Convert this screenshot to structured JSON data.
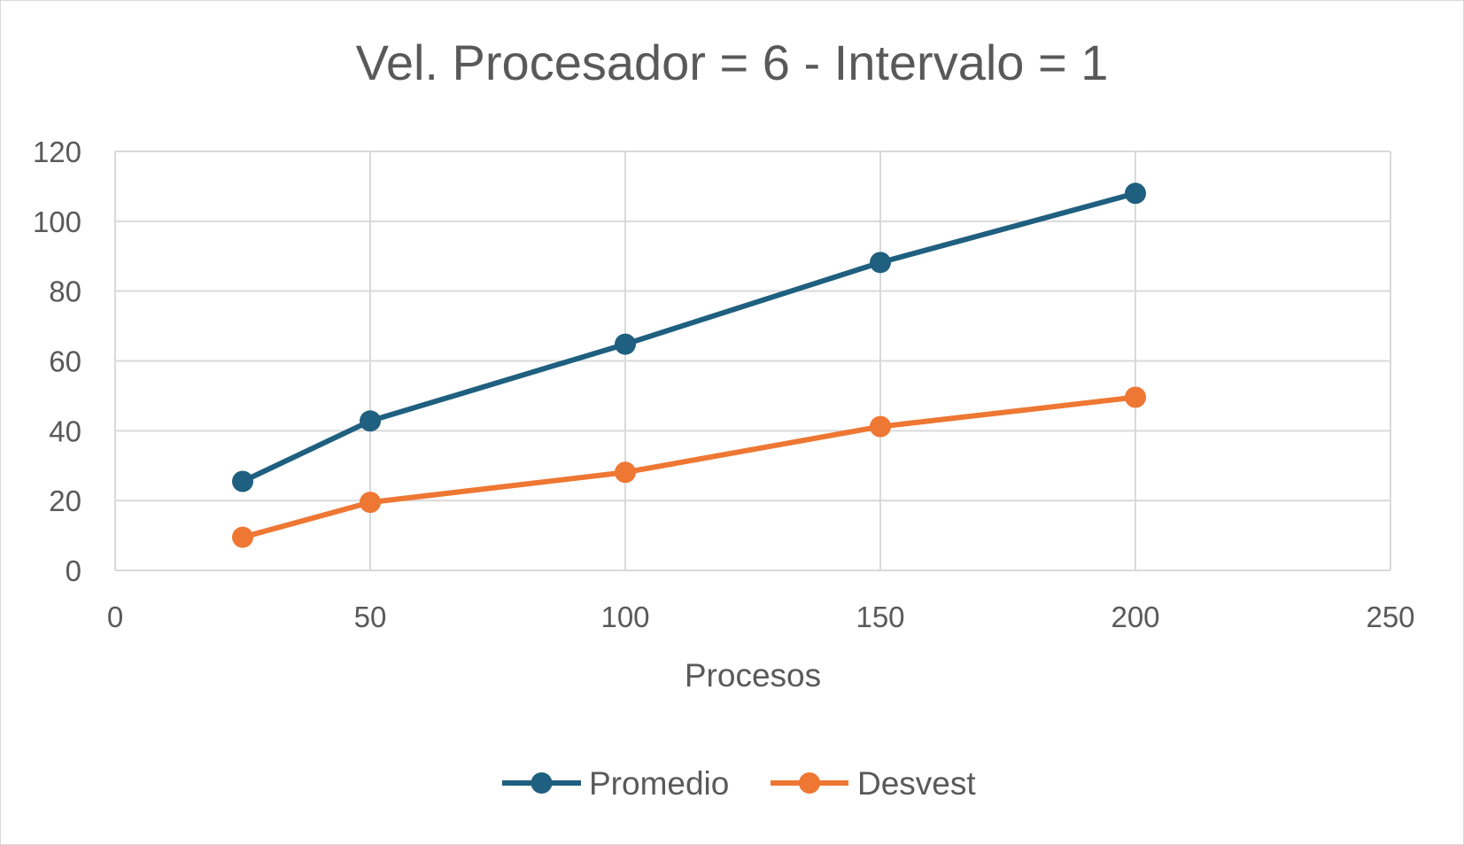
{
  "chart_data": {
    "type": "line",
    "title": "Vel. Procesador = 6 - Intervalo = 1",
    "xlabel": "Procesos",
    "ylabel": "",
    "xlim": [
      0,
      250
    ],
    "ylim": [
      0,
      120
    ],
    "x_ticks": [
      "0",
      "50",
      "100",
      "150",
      "200",
      "250"
    ],
    "y_ticks": [
      "0",
      "20",
      "40",
      "60",
      "80",
      "100",
      "120"
    ],
    "grid": true,
    "legend_position": "bottom",
    "series": [
      {
        "name": "Promedio",
        "color": "#1f5f7f",
        "x": [
          25,
          50,
          100,
          150,
          200
        ],
        "y": [
          25.5,
          42.8,
          64.8,
          88.2,
          108
        ]
      },
      {
        "name": "Desvest",
        "color": "#ee7733",
        "x": [
          25,
          50,
          100,
          150,
          200
        ],
        "y": [
          9.5,
          19.5,
          28.1,
          41.2,
          49.6
        ]
      }
    ]
  }
}
